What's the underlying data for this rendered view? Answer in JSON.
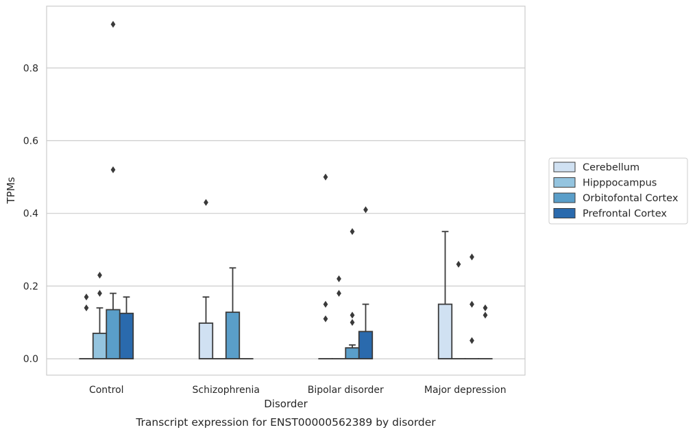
{
  "chart_data": {
    "type": "box",
    "title": "",
    "caption": "Transcript expression for ENST00000562389 by disorder",
    "xlabel": "Disorder",
    "ylabel": "TPMs",
    "ylim": [
      -0.045,
      0.97
    ],
    "yticks": [
      0.0,
      0.2,
      0.4,
      0.6,
      0.8
    ],
    "ytick_labels": [
      "0.0",
      "0.2",
      "0.4",
      "0.6",
      "0.8"
    ],
    "grid": "horizontal",
    "legend_placement": "center-right-outside",
    "categories": [
      "Control",
      "Schizophrenia",
      "Bipolar disorder",
      "Major depression"
    ],
    "series": [
      {
        "name": "Cerebellum",
        "color": "#d0e1f2",
        "boxes": [
          {
            "q1": 0.0,
            "median": 0.0,
            "q3": 0.0,
            "whisker_low": 0.0,
            "whisker_high": 0.0,
            "outliers": [
              0.14,
              0.17
            ]
          },
          {
            "q1": 0.0,
            "median": 0.0,
            "q3": 0.098,
            "whisker_low": 0.0,
            "whisker_high": 0.17,
            "outliers": [
              0.43
            ]
          },
          {
            "q1": 0.0,
            "median": 0.0,
            "q3": 0.0,
            "whisker_low": 0.0,
            "whisker_high": 0.0,
            "outliers": [
              0.11,
              0.15,
              0.5
            ]
          },
          {
            "q1": 0.0,
            "median": 0.0,
            "q3": 0.15,
            "whisker_low": 0.0,
            "whisker_high": 0.35,
            "outliers": []
          }
        ]
      },
      {
        "name": "Hipppocampus",
        "color": "#94c4df",
        "boxes": [
          {
            "q1": 0.0,
            "median": 0.0,
            "q3": 0.07,
            "whisker_low": 0.0,
            "whisker_high": 0.14,
            "outliers": [
              0.18,
              0.23
            ]
          },
          {
            "q1": 0.0,
            "median": 0.0,
            "q3": 0.0,
            "whisker_low": 0.0,
            "whisker_high": 0.0,
            "outliers": []
          },
          {
            "q1": 0.0,
            "median": 0.0,
            "q3": 0.0,
            "whisker_low": 0.0,
            "whisker_high": 0.0,
            "outliers": [
              0.18,
              0.22
            ]
          },
          {
            "q1": 0.0,
            "median": 0.0,
            "q3": 0.0,
            "whisker_low": 0.0,
            "whisker_high": 0.0,
            "outliers": [
              0.26
            ]
          }
        ]
      },
      {
        "name": "Orbitofontal Cortex",
        "color": "#5a9ec9",
        "boxes": [
          {
            "q1": 0.0,
            "median": 0.0,
            "q3": 0.135,
            "whisker_low": 0.0,
            "whisker_high": 0.18,
            "outliers": [
              0.52,
              0.92
            ]
          },
          {
            "q1": 0.0,
            "median": 0.0,
            "q3": 0.128,
            "whisker_low": 0.0,
            "whisker_high": 0.25,
            "outliers": []
          },
          {
            "q1": 0.0,
            "median": 0.0,
            "q3": 0.03,
            "whisker_low": 0.0,
            "whisker_high": 0.038,
            "outliers": [
              0.1,
              0.12,
              0.35
            ]
          },
          {
            "q1": 0.0,
            "median": 0.0,
            "q3": 0.0,
            "whisker_low": 0.0,
            "whisker_high": 0.0,
            "outliers": [
              0.05,
              0.15,
              0.28
            ]
          }
        ]
      },
      {
        "name": "Prefrontal Cortex",
        "color": "#2a6aad",
        "boxes": [
          {
            "q1": 0.0,
            "median": 0.0,
            "q3": 0.125,
            "whisker_low": 0.0,
            "whisker_high": 0.17,
            "outliers": []
          },
          {
            "q1": 0.0,
            "median": 0.0,
            "q3": 0.0,
            "whisker_low": 0.0,
            "whisker_high": 0.0,
            "outliers": []
          },
          {
            "q1": 0.0,
            "median": 0.0,
            "q3": 0.075,
            "whisker_low": 0.0,
            "whisker_high": 0.15,
            "outliers": [
              0.41
            ]
          },
          {
            "q1": 0.0,
            "median": 0.0,
            "q3": 0.0,
            "whisker_low": 0.0,
            "whisker_high": 0.0,
            "outliers": [
              0.12,
              0.14
            ]
          }
        ]
      }
    ]
  }
}
